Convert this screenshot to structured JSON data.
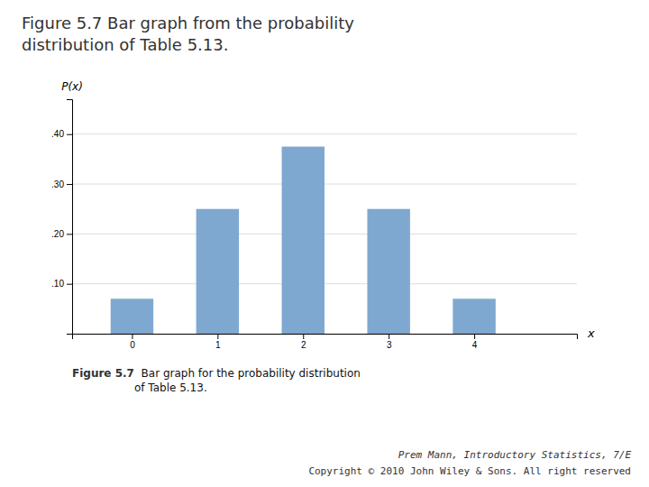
{
  "chart_data": {
    "type": "bar",
    "title": "Figure 5.7 Bar graph from the probability\ndistribution of Table 5.13.",
    "x_label": "x",
    "y_label": "P(x)",
    "x": [
      0,
      1,
      2,
      3,
      4
    ],
    "values": [
      0.07,
      0.25,
      0.375,
      0.25,
      0.07
    ],
    "color": "#7fa8d0",
    "xlim": [
      -0.7,
      5.2
    ],
    "xticks": [
      0,
      1,
      2,
      3,
      4
    ],
    "ylim": [
      0,
      0.47
    ],
    "yticks": [
      {
        "value": 0.1,
        "label": ".10"
      },
      {
        "value": 0.2,
        "label": ".20"
      },
      {
        "value": 0.3,
        "label": ".30"
      },
      {
        "value": 0.4,
        "label": ".40"
      }
    ],
    "grid": true,
    "annotations": [
      "Figure 5.7",
      "  Bar graph for the probability distribution\nof Table 5.13.",
      "Prem Mann, Introductory Statistics, 7/E",
      "Copyright © 2010 John Wiley & Sons. All right reserved"
    ]
  }
}
